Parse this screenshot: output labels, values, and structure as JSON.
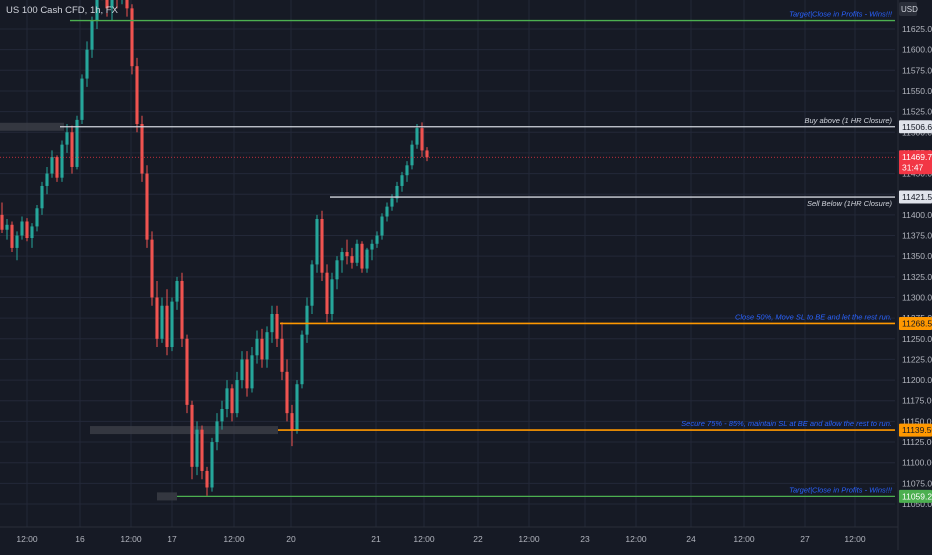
{
  "symbol_title": "US 100 Cash CFD, 1h, FX",
  "currency": "USD",
  "colors": {
    "background": "#161a25",
    "grid": "#232838",
    "axis_text": "#b2b5be",
    "bull": "#26a69a",
    "bear": "#ef5350",
    "white_line": "#d1d4dc",
    "green_line": "#4caf50",
    "orange_line": "#ff9800",
    "blue_text": "#2962ff",
    "zone": "#3a3d45",
    "last_price": "#f23645"
  },
  "chart_data": {
    "type": "candlestick",
    "title": "US 100 Cash CFD, 1h, FX",
    "y_axis": {
      "ylim": [
        11035,
        11690
      ],
      "ticks": [
        11625,
        11600,
        11575,
        11550,
        11525,
        11500,
        11475,
        11450,
        11425,
        11400,
        11375,
        11350,
        11325,
        11300,
        11275,
        11250,
        11225,
        11200,
        11175,
        11150,
        11125,
        11100,
        11075,
        11050
      ],
      "tick_labels": [
        "11625.00",
        "11600.00",
        "11575.00",
        "11550.00",
        "11525.00",
        "11500.00",
        "11475.00",
        "11450.00",
        "11425.00",
        "11400.00",
        "11375.00",
        "11350.00",
        "11325.00",
        "11300.00",
        "11275.00",
        "11250.00",
        "11225.00",
        "11200.00",
        "11175.00",
        "11150.00",
        "11125.00",
        "11100.00",
        "11075.00",
        "11050.00"
      ]
    },
    "x_axis": {
      "tick_labels": [
        "12:00",
        "16",
        "12:00",
        "17",
        "12:00",
        "20",
        "21",
        "12:00",
        "22",
        "12:00",
        "23",
        "12:00",
        "24",
        "12:00",
        "27",
        "12:00"
      ]
    },
    "grid": true,
    "levels": [
      {
        "price": 11635.2,
        "label": "Target|Close in Profits - Wins!!!",
        "badge": null,
        "kind": "green"
      },
      {
        "price": 11506.65,
        "label": "Buy above (1 HR Closure)",
        "badge": "11506.65",
        "kind": "white"
      },
      {
        "price": 11421.57,
        "label": "Sell Below (1HR Closure)",
        "badge": "11421.57",
        "kind": "white"
      },
      {
        "price": 11268.55,
        "label": "Close 50%, Move SL to BE and let the rest run.",
        "badge": "11268.55",
        "kind": "orange"
      },
      {
        "price": 11139.5,
        "label": "Secure 75% - 85%, maintain SL at BE and allow the rest to run.",
        "badge": "11139.50",
        "kind": "orange"
      },
      {
        "price": 11059.21,
        "label": "Target|Close in Profits - Wins!!!",
        "badge": "11059.21",
        "kind": "green"
      }
    ],
    "last_price": {
      "price": 11469.72,
      "label": "11469.72",
      "countdown": "31:47"
    },
    "candles": [
      [
        11400,
        11415,
        11378,
        11382
      ],
      [
        11382,
        11395,
        11370,
        11388
      ],
      [
        11388,
        11392,
        11355,
        11360
      ],
      [
        11360,
        11380,
        11345,
        11375
      ],
      [
        11375,
        11398,
        11370,
        11392
      ],
      [
        11392,
        11396,
        11368,
        11372
      ],
      [
        11372,
        11390,
        11360,
        11386
      ],
      [
        11386,
        11412,
        11380,
        11408
      ],
      [
        11408,
        11440,
        11400,
        11435
      ],
      [
        11435,
        11458,
        11425,
        11450
      ],
      [
        11450,
        11478,
        11445,
        11470
      ],
      [
        11470,
        11472,
        11440,
        11445
      ],
      [
        11445,
        11490,
        11440,
        11485
      ],
      [
        11485,
        11510,
        11475,
        11500
      ],
      [
        11500,
        11508,
        11450,
        11458
      ],
      [
        11458,
        11520,
        11455,
        11515
      ],
      [
        11515,
        11570,
        11510,
        11565
      ],
      [
        11565,
        11610,
        11555,
        11600
      ],
      [
        11600,
        11640,
        11590,
        11635
      ],
      [
        11635,
        11700,
        11625,
        11690
      ],
      [
        11690,
        11700,
        11660,
        11670
      ],
      [
        11670,
        11700,
        11640,
        11650
      ],
      [
        11650,
        11700,
        11635,
        11690
      ],
      [
        11690,
        11700,
        11650,
        11665
      ],
      [
        11665,
        11700,
        11655,
        11690
      ],
      [
        11690,
        11700,
        11640,
        11650
      ],
      [
        11650,
        11655,
        11570,
        11580
      ],
      [
        11580,
        11590,
        11500,
        11510
      ],
      [
        11510,
        11520,
        11440,
        11450
      ],
      [
        11450,
        11460,
        11360,
        11370
      ],
      [
        11370,
        11380,
        11290,
        11300
      ],
      [
        11300,
        11320,
        11240,
        11250
      ],
      [
        11250,
        11300,
        11245,
        11290
      ],
      [
        11290,
        11310,
        11230,
        11240
      ],
      [
        11240,
        11300,
        11235,
        11295
      ],
      [
        11295,
        11325,
        11285,
        11320
      ],
      [
        11320,
        11330,
        11240,
        11250
      ],
      [
        11250,
        11255,
        11160,
        11170
      ],
      [
        11170,
        11175,
        11080,
        11095
      ],
      [
        11095,
        11150,
        11085,
        11140
      ],
      [
        11140,
        11145,
        11080,
        11090
      ],
      [
        11090,
        11095,
        11060,
        11070
      ],
      [
        11070,
        11130,
        11065,
        11125
      ],
      [
        11125,
        11160,
        11115,
        11150
      ],
      [
        11150,
        11175,
        11140,
        11165
      ],
      [
        11165,
        11200,
        11155,
        11190
      ],
      [
        11190,
        11195,
        11150,
        11160
      ],
      [
        11160,
        11210,
        11155,
        11200
      ],
      [
        11200,
        11235,
        11190,
        11225
      ],
      [
        11225,
        11235,
        11180,
        11190
      ],
      [
        11190,
        11240,
        11185,
        11230
      ],
      [
        11230,
        11260,
        11220,
        11250
      ],
      [
        11250,
        11262,
        11215,
        11225
      ],
      [
        11225,
        11265,
        11215,
        11258
      ],
      [
        11258,
        11290,
        11245,
        11280
      ],
      [
        11280,
        11290,
        11240,
        11250
      ],
      [
        11250,
        11270,
        11200,
        11210
      ],
      [
        11210,
        11225,
        11150,
        11160
      ],
      [
        11160,
        11170,
        11120,
        11140
      ],
      [
        11140,
        11200,
        11135,
        11195
      ],
      [
        11195,
        11260,
        11190,
        11255
      ],
      [
        11255,
        11300,
        11245,
        11290
      ],
      [
        11290,
        11345,
        11280,
        11340
      ],
      [
        11340,
        11400,
        11330,
        11395
      ],
      [
        11395,
        11405,
        11320,
        11330
      ],
      [
        11330,
        11340,
        11270,
        11280
      ],
      [
        11280,
        11330,
        11272,
        11322
      ],
      [
        11322,
        11350,
        11310,
        11345
      ],
      [
        11345,
        11360,
        11330,
        11355
      ],
      [
        11355,
        11370,
        11340,
        11350
      ],
      [
        11350,
        11360,
        11335,
        11342
      ],
      [
        11342,
        11370,
        11338,
        11365
      ],
      [
        11365,
        11368,
        11330,
        11335
      ],
      [
        11335,
        11360,
        11330,
        11358
      ],
      [
        11358,
        11370,
        11345,
        11365
      ],
      [
        11365,
        11380,
        11360,
        11375
      ],
      [
        11375,
        11402,
        11370,
        11398
      ],
      [
        11398,
        11415,
        11392,
        11410
      ],
      [
        11410,
        11425,
        11405,
        11420
      ],
      [
        11420,
        11440,
        11415,
        11435
      ],
      [
        11435,
        11452,
        11428,
        11448
      ],
      [
        11448,
        11465,
        11440,
        11460
      ],
      [
        11460,
        11490,
        11455,
        11485
      ],
      [
        11485,
        11510,
        11480,
        11505
      ],
      [
        11505,
        11512,
        11470,
        11478
      ],
      [
        11478,
        11482,
        11465,
        11469.72
      ]
    ]
  }
}
